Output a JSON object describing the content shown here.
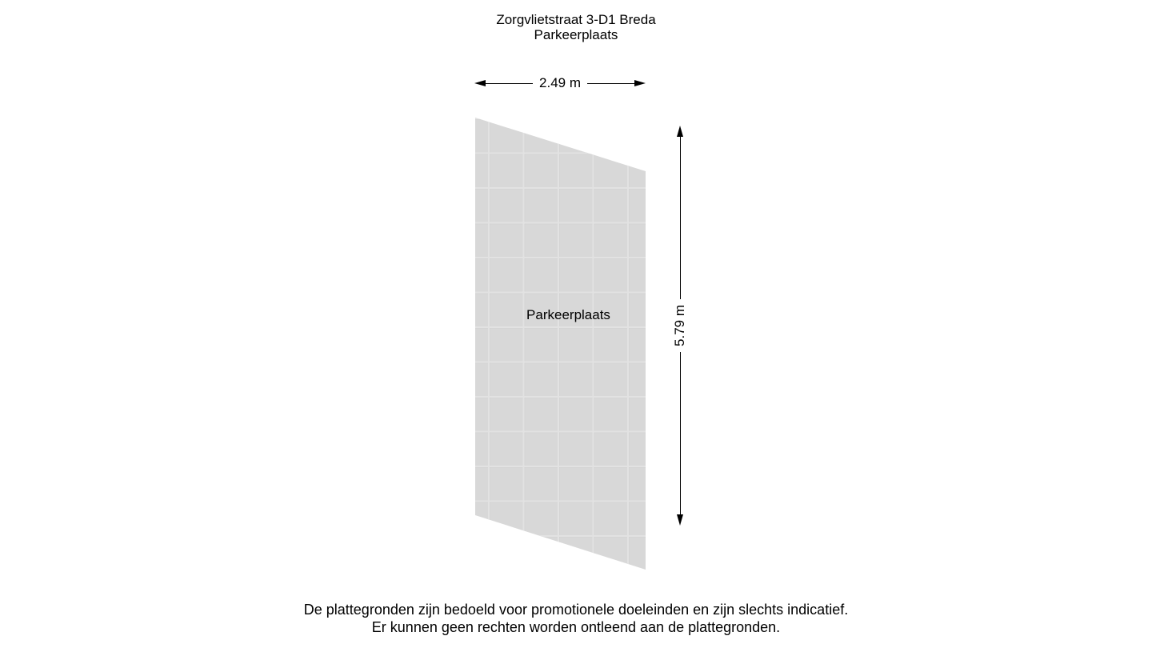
{
  "title": {
    "line1": "Zorgvlietstraat 3-D1 Breda",
    "line2": "Parkeerplaats"
  },
  "plan": {
    "room_label": "Parkeerplaats",
    "width_dimension": "2.49 m",
    "height_dimension": "5.79 m"
  },
  "footer": {
    "line1": "De plattegronden zijn bedoeld voor promotionele doeleinden en zijn slechts indicatief.",
    "line2": "Er kunnen geen rechten worden ontleend aan de plattegronden."
  },
  "colors": {
    "background": "#ffffff",
    "tile_fill": "#d8d8d8",
    "tile_grid_line": "#e2e2e2",
    "text": "#000000",
    "dimension_line": "#000000"
  }
}
